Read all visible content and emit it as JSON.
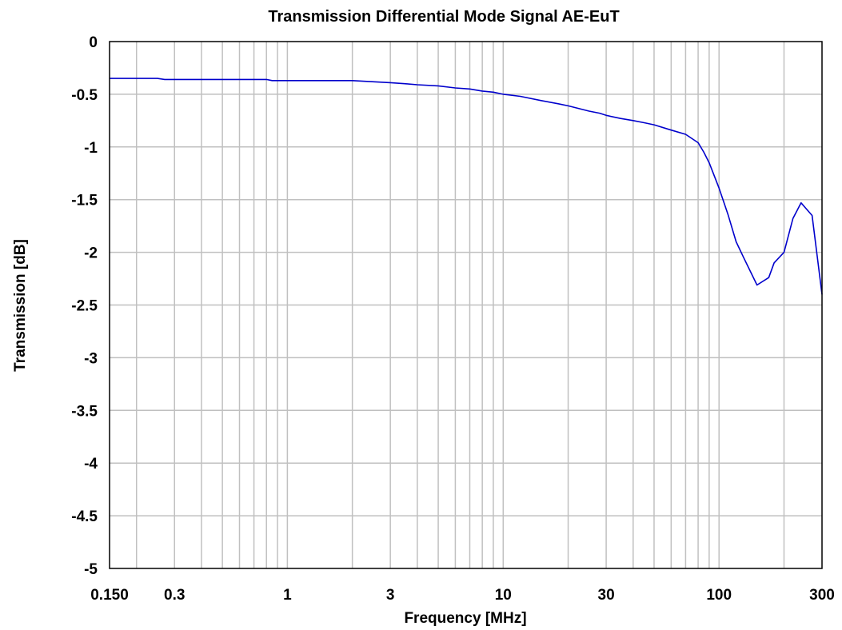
{
  "chart_data": {
    "type": "line",
    "title": "Transmission Differential Mode Signal AE-EuT",
    "xlabel": "Frequency [MHz]",
    "ylabel": "Transmission [dB]",
    "x_scale": "log",
    "xlim": [
      0.15,
      300
    ],
    "ylim": [
      -5,
      0
    ],
    "grid": true,
    "x_ticks": [
      {
        "value": 0.15,
        "label": "0.150"
      },
      {
        "value": 0.3,
        "label": "0.3"
      },
      {
        "value": 1,
        "label": "1"
      },
      {
        "value": 3,
        "label": "3"
      },
      {
        "value": 10,
        "label": "10"
      },
      {
        "value": 30,
        "label": "30"
      },
      {
        "value": 100,
        "label": "100"
      },
      {
        "value": 300,
        "label": "300"
      }
    ],
    "y_ticks": [
      {
        "value": 0,
        "label": "0"
      },
      {
        "value": -0.5,
        "label": "-0.5"
      },
      {
        "value": -1,
        "label": "-1"
      },
      {
        "value": -1.5,
        "label": "-1.5"
      },
      {
        "value": -2,
        "label": "-2"
      },
      {
        "value": -2.5,
        "label": "-2.5"
      },
      {
        "value": -3,
        "label": "-3"
      },
      {
        "value": -3.5,
        "label": "-3.5"
      },
      {
        "value": -4,
        "label": "-4"
      },
      {
        "value": -4.5,
        "label": "-4.5"
      },
      {
        "value": -5,
        "label": "-5"
      }
    ],
    "series": [
      {
        "color": "#0000cc",
        "x": [
          0.15,
          0.25,
          0.27,
          0.4,
          0.6,
          0.8,
          0.85,
          1,
          1.5,
          2,
          3,
          3.5,
          4,
          5,
          6,
          7,
          8,
          9,
          10,
          12,
          15,
          18,
          20,
          25,
          28,
          30,
          35,
          40,
          45,
          50,
          60,
          70,
          80,
          85,
          90,
          100,
          110,
          120,
          130,
          150,
          170,
          180,
          200,
          220,
          240,
          270,
          300
        ],
        "y": [
          -0.35,
          -0.35,
          -0.36,
          -0.36,
          -0.36,
          -0.36,
          -0.37,
          -0.37,
          -0.37,
          -0.37,
          -0.39,
          -0.4,
          -0.41,
          -0.42,
          -0.44,
          -0.45,
          -0.47,
          -0.48,
          -0.5,
          -0.52,
          -0.56,
          -0.59,
          -0.61,
          -0.66,
          -0.68,
          -0.7,
          -0.73,
          -0.75,
          -0.77,
          -0.79,
          -0.84,
          -0.88,
          -0.96,
          -1.05,
          -1.15,
          -1.39,
          -1.64,
          -1.9,
          -2.05,
          -2.31,
          -2.24,
          -2.1,
          -2.0,
          -1.68,
          -1.53,
          -1.65,
          -2.4
        ]
      }
    ]
  }
}
